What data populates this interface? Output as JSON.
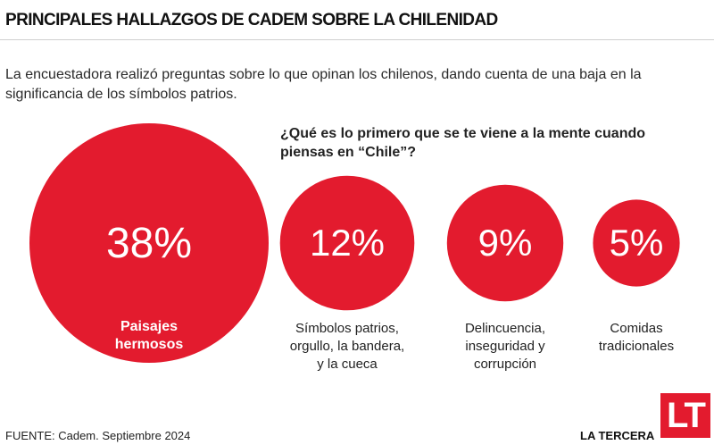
{
  "title": "PRINCIPALES HALLAZGOS DE CADEM SOBRE LA CHILENIDAD",
  "subtitle": "La encuestadora realizó preguntas sobre lo que opinan los chilenos, dando cuenta de una baja en la significancia de los símbolos patrios.",
  "question": "¿Qué es lo primero que se te viene a la mente cuando piensas en “Chile”?",
  "source": "FUENTE: Cadem. Septiembre 2024",
  "brand": "LA TERCERA",
  "logo_text": "LT",
  "colors": {
    "bubble": "#e31b2e",
    "text": "#1a1a1a",
    "label_inside": "#ffffff"
  },
  "chart_data": {
    "type": "bubble",
    "unit": "%",
    "categories": [
      "Paisajes hermosos",
      "Símbolos patrios, orgullo, la bandera, y la cueca",
      "Delincuencia, inseguridad y corrupción",
      "Comidas tradicionales"
    ],
    "values": [
      38,
      12,
      9,
      5
    ],
    "value_labels": [
      "38%",
      "12%",
      "9%",
      "5%"
    ],
    "label_lines": [
      [
        "Paisajes",
        "hermosos"
      ],
      [
        "Símbolos patrios,",
        "orgullo, la bandera,",
        "y la cueca"
      ],
      [
        "Delincuencia,",
        "inseguridad y",
        "corrupción"
      ],
      [
        "Comidas",
        "tradicionales"
      ]
    ]
  }
}
